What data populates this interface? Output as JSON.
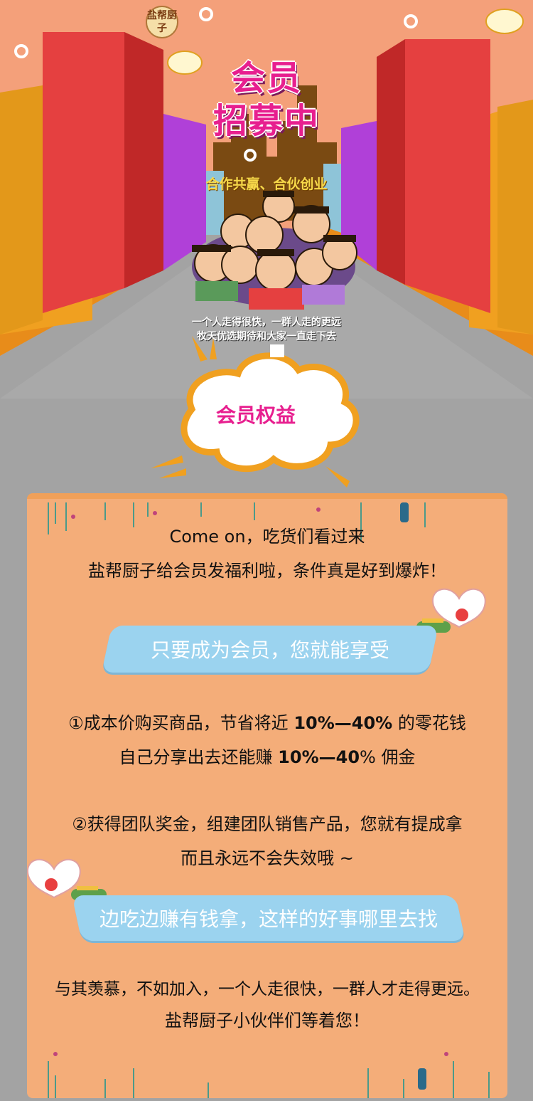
{
  "logo": {
    "text": "盐帮厨子"
  },
  "hero": {
    "title_line1": "会员",
    "title_line2": "招募中",
    "slogan": "合作共赢、合伙创业",
    "tagline1": "一个人走得很快，一群人走的更远",
    "tagline2": "牧天优选期待和大家一直走下去"
  },
  "benefits": {
    "title": "会员权益",
    "intro1": "Come on，吃货们看过来",
    "intro2": "盐帮厨子给会员发福利啦，条件真是好到爆炸！",
    "pill1": "只要成为会员，您就能享受",
    "item1_a": "①成本价购买商品，节省将近 ",
    "item1_b": "10%—40%",
    "item1_c": " 的零花钱",
    "item2_a": "自己分享出去还能赚 ",
    "item2_b": "10%—40",
    "item2_c": "% 佣金",
    "item3": "②获得团队奖金，组建团队销售产品，您就有提成拿",
    "item4": "而且永远不会失效哦 ~",
    "pill2": "边吃边赚有钱拿，这样的好事哪里去找",
    "closing1": "与其羡慕，不如加入，一个人走很快，一群人才走得更远。",
    "closing2": "盐帮厨子小伙伴们等着您！"
  },
  "colors": {
    "background": "#a3a3a3",
    "sky": "#f4a07a",
    "panel": "#f4ad79",
    "panel_border": "#f0a059",
    "accent_pink": "#e71f8f",
    "pill_blue": "#9bd3ef",
    "road": "#a3a3a3"
  }
}
